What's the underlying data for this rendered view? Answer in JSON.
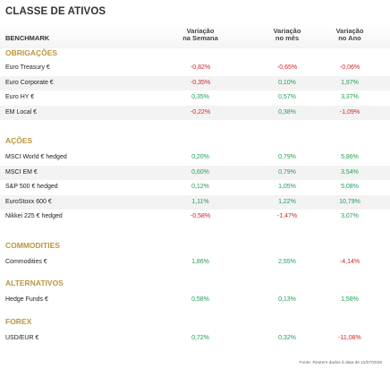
{
  "title": "CLASSE DE ATIVOS",
  "header": {
    "benchmark": "BENCHMARK",
    "week": [
      "Variação",
      "na Semana"
    ],
    "month": [
      "Variação",
      "no mês"
    ],
    "year": [
      "Variação",
      "no Ano"
    ]
  },
  "sections": [
    {
      "name": "OBRIGAÇÕES",
      "rows": [
        {
          "label": "Euro Treasury €",
          "w": "-0,82%",
          "m": "-0,65%",
          "y": "-0,06%"
        },
        {
          "label": "Euro Corporate €",
          "w": "-0,35%",
          "m": "0,10%",
          "y": "1,97%"
        },
        {
          "label": "Euro HY €",
          "w": "0,35%",
          "m": "0,57%",
          "y": "3,37%"
        },
        {
          "label": "EM Local €",
          "w": "-0,22%",
          "m": "0,38%",
          "y": "-1,09%"
        }
      ]
    },
    {
      "name": "AÇÕES",
      "rows": [
        {
          "label": "MSCI World € hedged",
          "w": "0,20%",
          "m": "0,79%",
          "y": "5,86%"
        },
        {
          "label": "MSCI EM €",
          "w": "0,60%",
          "m": "0,79%",
          "y": "3,54%"
        },
        {
          "label": "S&P 500 € hedged",
          "w": "0,12%",
          "m": "1,05%",
          "y": "5,08%"
        },
        {
          "label": "EuroStoxx 600 €",
          "w": "1,11%",
          "m": "1,22%",
          "y": "10,79%"
        },
        {
          "label": "Nikkei 225 € hedged",
          "w": "-0,58%",
          "m": "-1,47%",
          "y": "3,07%"
        }
      ]
    },
    {
      "name": "COMMODITIES",
      "rows": [
        {
          "label": "Commodities €",
          "w": "1,86%",
          "m": "2,55%",
          "y": "-4,14%"
        }
      ]
    },
    {
      "name": "ALTERNATIVOS",
      "rows": [
        {
          "label": "Hedge Funds €",
          "w": "0,58%",
          "m": "0,13%",
          "y": "1,58%"
        }
      ]
    },
    {
      "name": "FOREX",
      "rows": [
        {
          "label": "USD/EUR €",
          "w": "0,72%",
          "m": "0,32%",
          "y": "-11,08%"
        }
      ]
    }
  ],
  "footnote": "Fonte: Reuters dados à data de 11/07/2025",
  "colors": {
    "positive": "#1f9e55",
    "negative": "#d42222",
    "section": "#b99740"
  }
}
